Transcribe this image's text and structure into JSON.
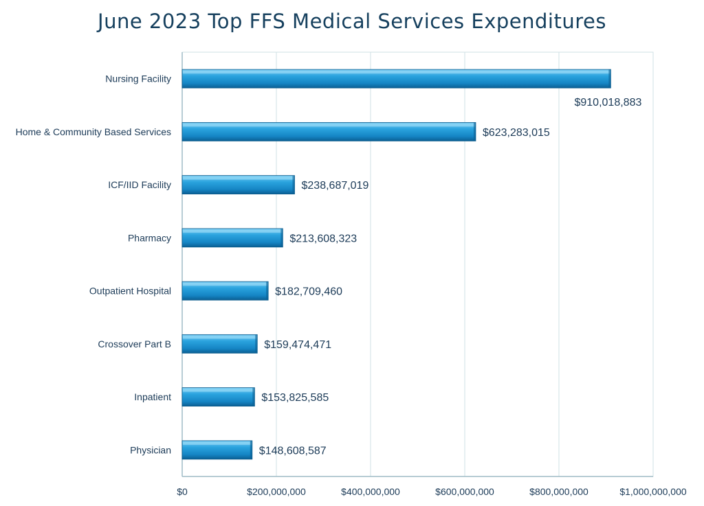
{
  "chart_data": {
    "type": "bar",
    "orientation": "horizontal",
    "title": "June 2023 Top FFS Medical Services Expenditures",
    "xlabel": "",
    "ylabel": "",
    "categories": [
      "Nursing Facility",
      "Home & Community Based Services",
      "ICF/IID Facility",
      "Pharmacy",
      "Outpatient Hospital",
      "Crossover Part B",
      "Inpatient",
      "Physician"
    ],
    "values": [
      910018883,
      623283015,
      238687019,
      213608323,
      182709460,
      159474471,
      153825585,
      148608587
    ],
    "value_labels": [
      "$910,018,883",
      "$623,283,015",
      "$238,687,019",
      "$213,608,323",
      "$182,709,460",
      "$159,474,471",
      "$153,825,585",
      "$148,608,587"
    ],
    "xlim": [
      0,
      1000000000
    ],
    "x_ticks": [
      0,
      200000000,
      400000000,
      600000000,
      800000000,
      1000000000
    ],
    "x_tick_labels": [
      "$0",
      "$200,000,000",
      "$400,000,000",
      "$600,000,000",
      "$800,000,000",
      "$1,000,000,000"
    ],
    "grid": true,
    "legend": "none",
    "colors": {
      "bar": "#1a8fd0",
      "bar_light": "#5fc0f0",
      "bar_dark": "#0b5f93",
      "title": "#16405e",
      "text": "#1b3a57",
      "grid": "#cfe0e6",
      "axis": "#9fbcc6"
    }
  }
}
